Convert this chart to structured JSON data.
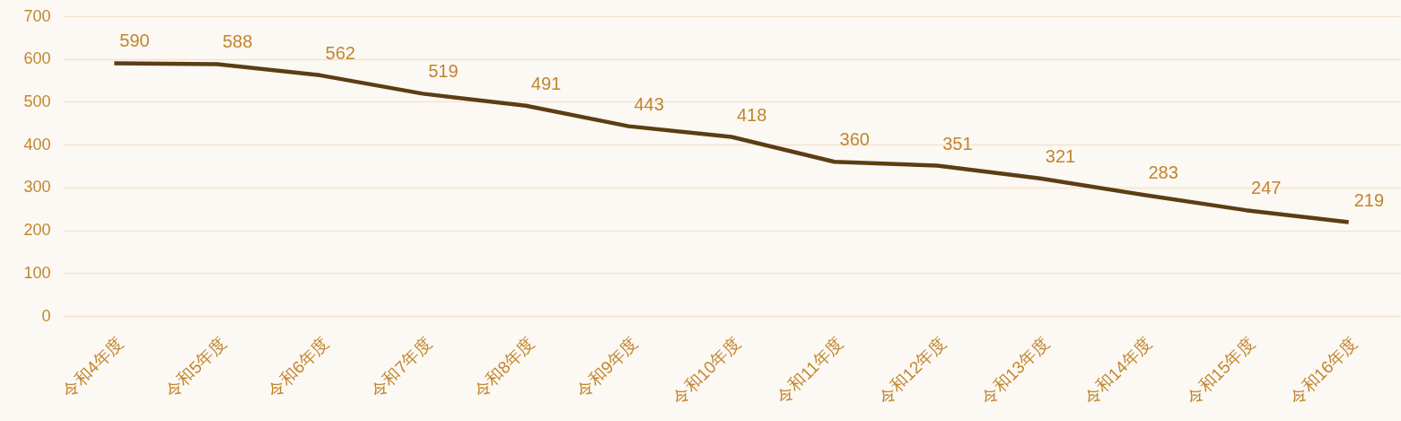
{
  "chart_data": {
    "type": "line",
    "categories": [
      "令和4年度",
      "令和5年度",
      "令和6年度",
      "令和7年度",
      "令和8年度",
      "令和9年度",
      "令和10年度",
      "令和11年度",
      "令和12年度",
      "令和13年度",
      "令和14年度",
      "令和15年度",
      "令和16年度"
    ],
    "series": [
      {
        "color": "#5c3d14",
        "values": [
          590,
          588,
          562,
          519,
          491,
          443,
          418,
          360,
          351,
          321,
          283,
          247,
          219
        ]
      }
    ],
    "ylim": [
      0,
      700
    ],
    "yticks": [
      0,
      100,
      200,
      300,
      400,
      500,
      600,
      700
    ],
    "grid": "y",
    "data_labels": true,
    "marker": "none",
    "line_style": "solid"
  }
}
